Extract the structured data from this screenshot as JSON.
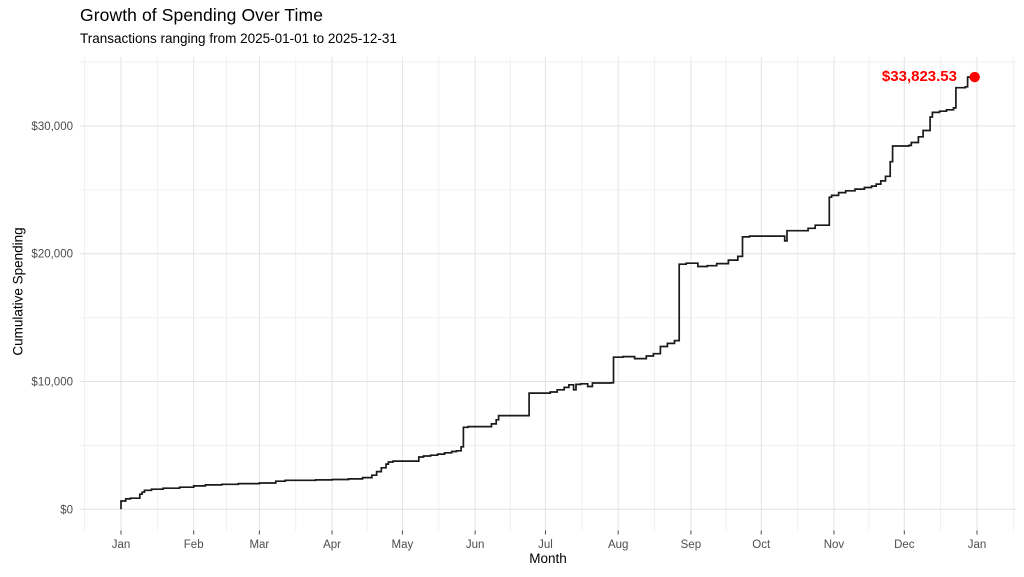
{
  "header": {
    "title": "Growth of Spending Over Time",
    "subtitle": "Transactions ranging from 2025-01-01 to 2025-12-31"
  },
  "chart_data": {
    "type": "line",
    "step": true,
    "title": "Growth of Spending Over Time",
    "subtitle": "Transactions ranging from 2025-01-01 to 2025-12-31",
    "xlabel": "Month",
    "ylabel": "Cumulative Spending",
    "x_range": [
      "2025-01-01",
      "2026-01-01"
    ],
    "ylim": [
      0,
      35000
    ],
    "grid": "major+minor",
    "legend": "none",
    "line_color": "#1a1a1a",
    "grid_major_color": "#e3e3e3",
    "grid_minor_color": "#f0f0f0",
    "tick_text_color": "#4d4d4d",
    "x_tick_labels": [
      "Jan",
      "Feb",
      "Mar",
      "Apr",
      "May",
      "Jun",
      "Jul",
      "Aug",
      "Sep",
      "Oct",
      "Nov",
      "Dec",
      "Jan"
    ],
    "y_ticks": [
      {
        "value": 0,
        "label": "$0"
      },
      {
        "value": 10000,
        "label": "$10,000"
      },
      {
        "value": 20000,
        "label": "$20,000"
      },
      {
        "value": 30000,
        "label": "$30,000"
      }
    ],
    "y_minor_ticks": [
      5000,
      15000,
      25000,
      35000
    ],
    "endpoint": {
      "date": "2025-12-31",
      "value": 33823.53,
      "label": "$33,823.53",
      "color": "#ff0000"
    },
    "points": [
      [
        "2025-01-01",
        0
      ],
      [
        "2025-01-01",
        650
      ],
      [
        "2025-01-03",
        810
      ],
      [
        "2025-01-05",
        870
      ],
      [
        "2025-01-09",
        1180
      ],
      [
        "2025-01-10",
        1340
      ],
      [
        "2025-01-11",
        1490
      ],
      [
        "2025-01-14",
        1570
      ],
      [
        "2025-01-19",
        1650
      ],
      [
        "2025-01-26",
        1730
      ],
      [
        "2025-02-01",
        1830
      ],
      [
        "2025-02-06",
        1910
      ],
      [
        "2025-02-13",
        1960
      ],
      [
        "2025-02-20",
        2010
      ],
      [
        "2025-03-01",
        2060
      ],
      [
        "2025-03-08",
        2200
      ],
      [
        "2025-03-12",
        2270
      ],
      [
        "2025-03-25",
        2300
      ],
      [
        "2025-04-01",
        2330
      ],
      [
        "2025-04-08",
        2380
      ],
      [
        "2025-04-14",
        2480
      ],
      [
        "2025-04-18",
        2670
      ],
      [
        "2025-04-20",
        2950
      ],
      [
        "2025-04-22",
        3250
      ],
      [
        "2025-04-24",
        3540
      ],
      [
        "2025-04-25",
        3700
      ],
      [
        "2025-04-27",
        3770
      ],
      [
        "2025-05-08",
        4090
      ],
      [
        "2025-05-10",
        4170
      ],
      [
        "2025-05-13",
        4230
      ],
      [
        "2025-05-16",
        4320
      ],
      [
        "2025-05-19",
        4420
      ],
      [
        "2025-05-22",
        4520
      ],
      [
        "2025-05-24",
        4580
      ],
      [
        "2025-05-26",
        4890
      ],
      [
        "2025-05-27",
        6420
      ],
      [
        "2025-05-29",
        6470
      ],
      [
        "2025-06-08",
        6680
      ],
      [
        "2025-06-10",
        7000
      ],
      [
        "2025-06-11",
        7330
      ],
      [
        "2025-06-24",
        9090
      ],
      [
        "2025-07-03",
        9180
      ],
      [
        "2025-07-06",
        9350
      ],
      [
        "2025-07-09",
        9540
      ],
      [
        "2025-07-11",
        9740
      ],
      [
        "2025-07-13",
        9350
      ],
      [
        "2025-07-14",
        9770
      ],
      [
        "2025-07-16",
        9820
      ],
      [
        "2025-07-19",
        9610
      ],
      [
        "2025-07-21",
        9880
      ],
      [
        "2025-07-29",
        9900
      ],
      [
        "2025-07-30",
        11900
      ],
      [
        "2025-08-03",
        11950
      ],
      [
        "2025-08-08",
        11790
      ],
      [
        "2025-08-13",
        12000
      ],
      [
        "2025-08-16",
        12180
      ],
      [
        "2025-08-19",
        12740
      ],
      [
        "2025-08-22",
        12980
      ],
      [
        "2025-08-25",
        13200
      ],
      [
        "2025-08-27",
        19180
      ],
      [
        "2025-08-30",
        19260
      ],
      [
        "2025-09-04",
        19000
      ],
      [
        "2025-09-08",
        19060
      ],
      [
        "2025-09-12",
        19230
      ],
      [
        "2025-09-17",
        19500
      ],
      [
        "2025-09-21",
        19790
      ],
      [
        "2025-09-23",
        21320
      ],
      [
        "2025-09-26",
        21380
      ],
      [
        "2025-10-11",
        21000
      ],
      [
        "2025-10-12",
        21800
      ],
      [
        "2025-10-21",
        21990
      ],
      [
        "2025-10-24",
        22230
      ],
      [
        "2025-10-30",
        24420
      ],
      [
        "2025-10-31",
        24560
      ],
      [
        "2025-11-03",
        24780
      ],
      [
        "2025-11-06",
        24920
      ],
      [
        "2025-11-10",
        25060
      ],
      [
        "2025-11-14",
        25180
      ],
      [
        "2025-11-17",
        25290
      ],
      [
        "2025-11-19",
        25450
      ],
      [
        "2025-11-21",
        25700
      ],
      [
        "2025-11-23",
        26060
      ],
      [
        "2025-11-25",
        27200
      ],
      [
        "2025-11-26",
        28430
      ],
      [
        "2025-12-03",
        28480
      ],
      [
        "2025-12-04",
        28700
      ],
      [
        "2025-12-07",
        29150
      ],
      [
        "2025-12-09",
        29640
      ],
      [
        "2025-12-12",
        30700
      ],
      [
        "2025-12-13",
        31060
      ],
      [
        "2025-12-16",
        31150
      ],
      [
        "2025-12-19",
        31260
      ],
      [
        "2025-12-22",
        31410
      ],
      [
        "2025-12-23",
        32990
      ],
      [
        "2025-12-27",
        33060
      ],
      [
        "2025-12-28",
        33823.53
      ],
      [
        "2025-12-31",
        33823.53
      ]
    ]
  }
}
